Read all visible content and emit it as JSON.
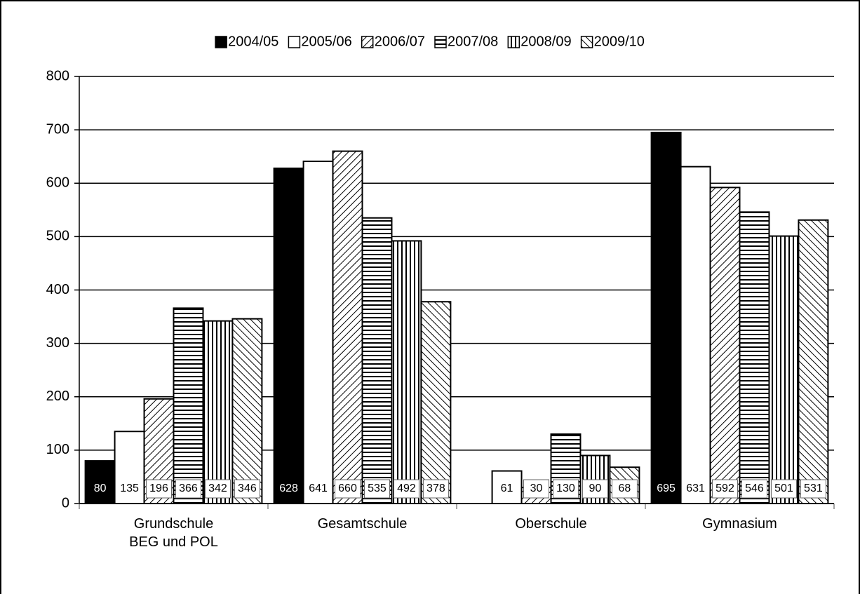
{
  "chart_data": {
    "type": "bar",
    "categories": [
      "Grundschule\nBEG und POL",
      "Gesamtschule",
      "Oberschule",
      "Gymnasium"
    ],
    "series": [
      {
        "name": "2004/05",
        "color": "#000000",
        "pattern": "solid",
        "values": [
          80,
          628,
          0,
          695
        ]
      },
      {
        "name": "2005/06",
        "color": "#ffffff",
        "pattern": "solid",
        "values": [
          135,
          641,
          61,
          631
        ]
      },
      {
        "name": "2006/07",
        "color": "#000000",
        "pattern": "diagonal-down",
        "values": [
          196,
          660,
          30,
          592
        ]
      },
      {
        "name": "2007/08",
        "color": "#000000",
        "pattern": "horizontal",
        "values": [
          366,
          535,
          130,
          546
        ]
      },
      {
        "name": "2008/09",
        "color": "#000000",
        "pattern": "vertical",
        "values": [
          342,
          492,
          90,
          501
        ]
      },
      {
        "name": "2009/10",
        "color": "#000000",
        "pattern": "diagonal-up",
        "values": [
          346,
          378,
          68,
          531
        ]
      }
    ],
    "ylim": [
      0,
      800
    ],
    "yticks": [
      0,
      100,
      200,
      300,
      400,
      500,
      600,
      700,
      800
    ],
    "grid": true,
    "legend": "top"
  }
}
